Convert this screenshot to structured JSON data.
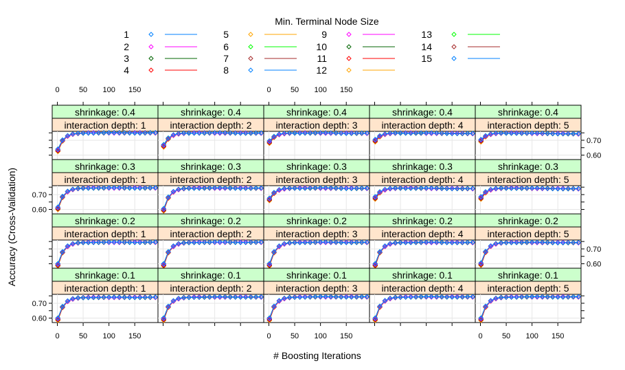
{
  "chart_data": {
    "type": "line",
    "title": "",
    "legend_title": "Min. Terminal Node Size",
    "xlabel": "# Boosting Iterations",
    "ylabel": "Accuracy (Cross-Validation)",
    "xlim": [
      -10,
      195
    ],
    "ylim": [
      0.57,
      0.76
    ],
    "x_ticks": [
      0,
      50,
      100,
      150
    ],
    "y_ticks": [
      0.6,
      0.7
    ],
    "y_tick_labels": [
      "0.60",
      "0.70"
    ],
    "x": [
      1,
      10,
      20,
      30,
      40,
      50,
      60,
      70,
      80,
      90,
      100,
      110,
      120,
      130,
      140,
      150,
      160,
      170,
      180,
      190
    ],
    "legend_columns": [
      [
        {
          "label": "1",
          "color": "#0080ff"
        },
        {
          "label": "2",
          "color": "#ff00ff"
        },
        {
          "label": "3",
          "color": "#006400"
        },
        {
          "label": "4",
          "color": "#ff0000"
        }
      ],
      [
        {
          "label": "5",
          "color": "#ffa500"
        },
        {
          "label": "6",
          "color": "#00ff00"
        },
        {
          "label": "7",
          "color": "#a52a2a"
        },
        {
          "label": "8",
          "color": "#0080ff"
        }
      ],
      [
        {
          "label": "9",
          "color": "#ff00ff"
        },
        {
          "label": "10",
          "color": "#006400"
        },
        {
          "label": "11",
          "color": "#ff0000"
        },
        {
          "label": "12",
          "color": "#ffa500"
        }
      ],
      [
        {
          "label": "13",
          "color": "#00ff00"
        },
        {
          "label": "14",
          "color": "#a52a2a"
        },
        {
          "label": "15",
          "color": "#0080ff"
        }
      ]
    ],
    "panel_rows": [
      {
        "shrinkage_label": "shrinkage: 0.4",
        "depth_labels": [
          "interaction depth: 1",
          "interaction depth: 2",
          "interaction depth: 3",
          "interaction depth: 4",
          "interaction depth: 5"
        ],
        "start": [
          0.64,
          0.67,
          0.695,
          0.705,
          0.705
        ],
        "plateau": [
          0.75,
          0.75,
          0.75,
          0.75,
          0.75
        ],
        "drift": [
          0.0,
          -0.002,
          -0.003,
          -0.005,
          -0.007
        ]
      },
      {
        "shrinkage_label": "shrinkage: 0.3",
        "depth_labels": [
          "interaction depth: 1",
          "interaction depth: 2",
          "interaction depth: 3",
          "interaction depth: 4",
          "interaction depth: 5"
        ],
        "start": [
          0.615,
          0.605,
          0.675,
          0.685,
          0.685
        ],
        "plateau": [
          0.745,
          0.745,
          0.745,
          0.745,
          0.745
        ],
        "drift": [
          0.0,
          -0.002,
          -0.003,
          -0.005,
          -0.006
        ]
      },
      {
        "shrinkage_label": "shrinkage: 0.2",
        "depth_labels": [
          "interaction depth: 1",
          "interaction depth: 2",
          "interaction depth: 3",
          "interaction depth: 4",
          "interaction depth: 5"
        ],
        "start": [
          0.6,
          0.6,
          0.6,
          0.6,
          0.605
        ],
        "plateau": [
          0.745,
          0.745,
          0.745,
          0.745,
          0.745
        ],
        "drift": [
          0.0,
          0.0,
          -0.001,
          -0.002,
          -0.003
        ]
      },
      {
        "shrinkage_label": "shrinkage: 0.1",
        "depth_labels": [
          "interaction depth: 1",
          "interaction depth: 2",
          "interaction depth: 3",
          "interaction depth: 4",
          "interaction depth: 5"
        ],
        "start": [
          0.6,
          0.6,
          0.6,
          0.6,
          0.6
        ],
        "plateau": [
          0.74,
          0.742,
          0.743,
          0.743,
          0.743
        ],
        "drift": [
          0.0,
          0.0,
          0.0,
          0.0,
          0.0
        ]
      }
    ],
    "grid": true,
    "legend_position": "top"
  }
}
